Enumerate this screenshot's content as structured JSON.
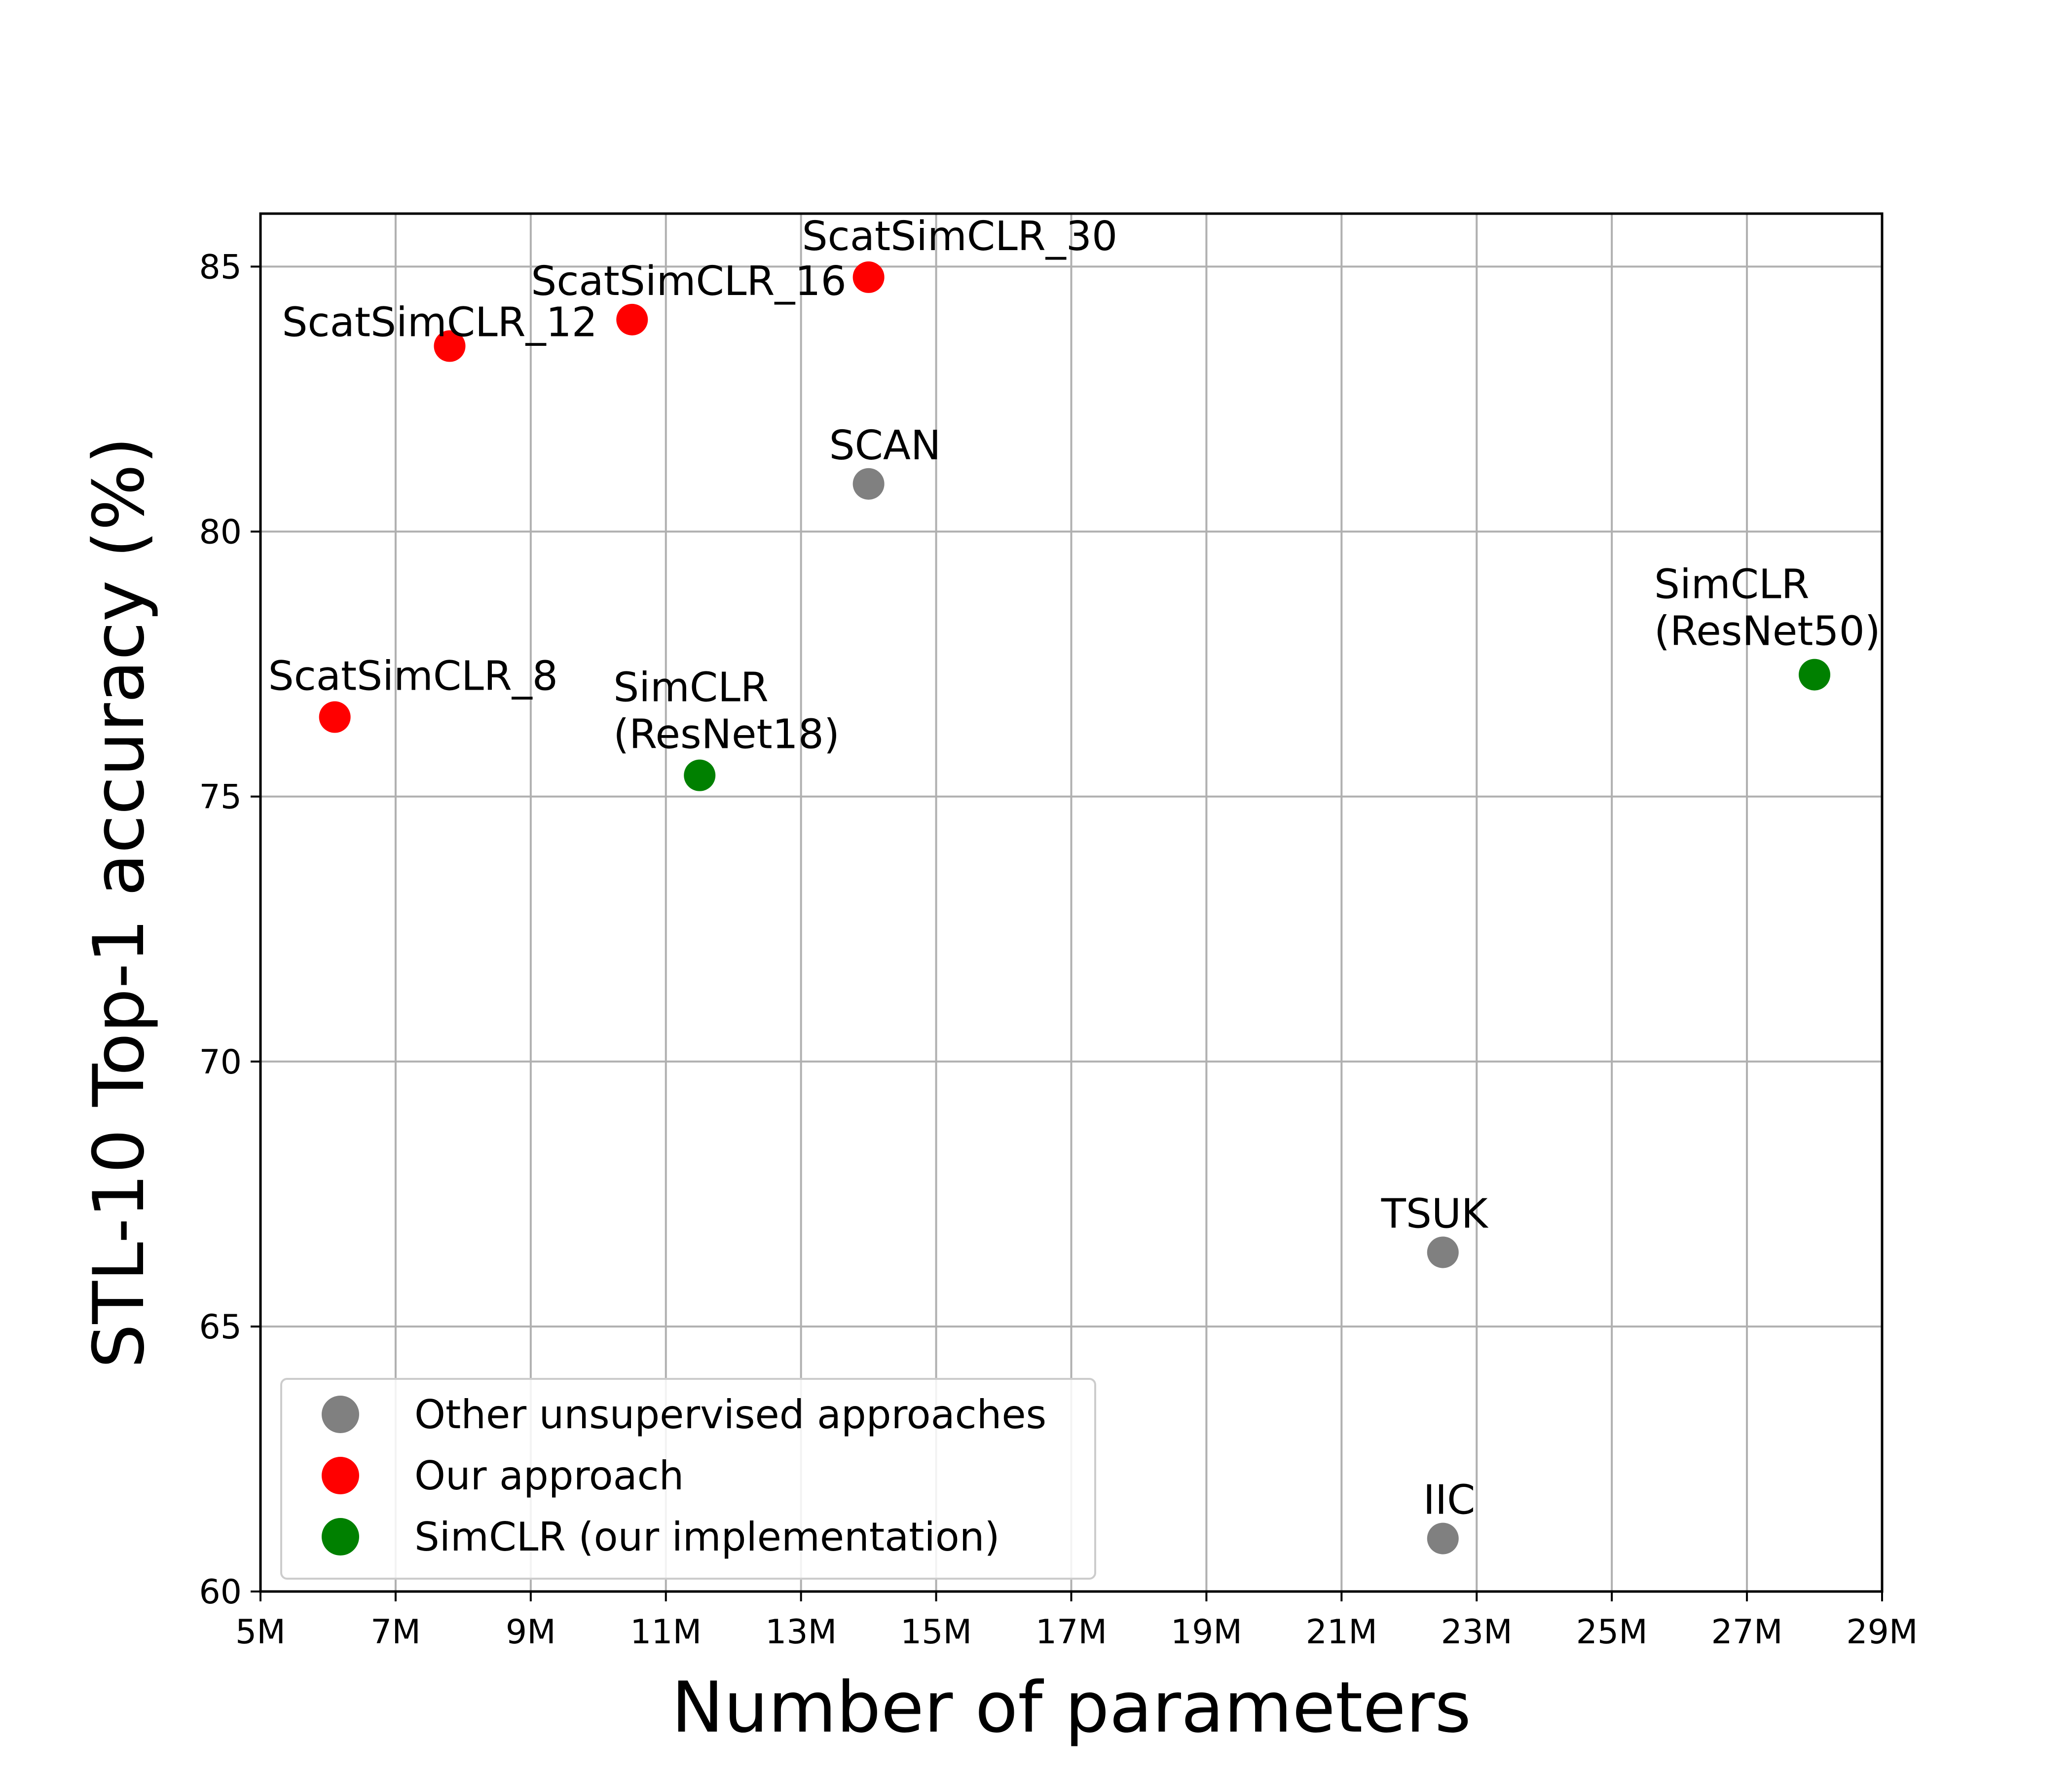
{
  "chart_data": {
    "type": "scatter",
    "title": "",
    "xlabel": "Number of parameters",
    "ylabel": "STL-10 Top-1 accuracy (%)",
    "xlim": [
      5,
      29
    ],
    "ylim": [
      60,
      86
    ],
    "x_unit": "M",
    "xticks": [
      "5M",
      "7M",
      "9M",
      "11M",
      "13M",
      "15M",
      "17M",
      "19M",
      "21M",
      "23M",
      "25M",
      "27M",
      "29M"
    ],
    "yticks": [
      "60",
      "65",
      "70",
      "75",
      "80",
      "85"
    ],
    "grid": true,
    "legend_position": "lower-left",
    "colors": {
      "Other": "#808080",
      "Ours": "#ff0000",
      "SimCLR": "#008000"
    },
    "legend": [
      {
        "label": "Other unsupervised approaches",
        "color": "#808080"
      },
      {
        "label": "Our approach",
        "color": "#ff0000"
      },
      {
        "label": "SimCLR (our implementation)",
        "color": "#008000"
      }
    ],
    "points": [
      {
        "name": "ScatSimCLR_8",
        "lines": [
          "ScatSimCLR_8"
        ],
        "x": 6.1,
        "y": 76.5,
        "group": "Ours"
      },
      {
        "name": "ScatSimCLR_12",
        "lines": [
          "ScatSimCLR_12"
        ],
        "x": 7.8,
        "y": 83.5,
        "group": "Ours"
      },
      {
        "name": "ScatSimCLR_16",
        "lines": [
          "ScatSimCLR_16"
        ],
        "x": 10.5,
        "y": 84.0,
        "group": "Ours"
      },
      {
        "name": "ScatSimCLR_30",
        "lines": [
          "ScatSimCLR_30"
        ],
        "x": 14.0,
        "y": 84.8,
        "group": "Ours"
      },
      {
        "name": "SCAN",
        "lines": [
          "SCAN"
        ],
        "x": 14.0,
        "y": 80.9,
        "group": "Other"
      },
      {
        "name": "SimCLR (ResNet18)",
        "lines": [
          "SimCLR",
          "(ResNet18)"
        ],
        "x": 11.5,
        "y": 75.4,
        "group": "SimCLR"
      },
      {
        "name": "SimCLR (ResNet50)",
        "lines": [
          "SimCLR",
          "(ResNet50)"
        ],
        "x": 28.0,
        "y": 77.3,
        "group": "SimCLR"
      },
      {
        "name": "TSUK",
        "lines": [
          "TSUK"
        ],
        "x": 22.5,
        "y": 66.4,
        "group": "Other"
      },
      {
        "name": "IIC",
        "lines": [
          "IIC"
        ],
        "x": 22.5,
        "y": 61.0,
        "group": "Other"
      }
    ]
  }
}
